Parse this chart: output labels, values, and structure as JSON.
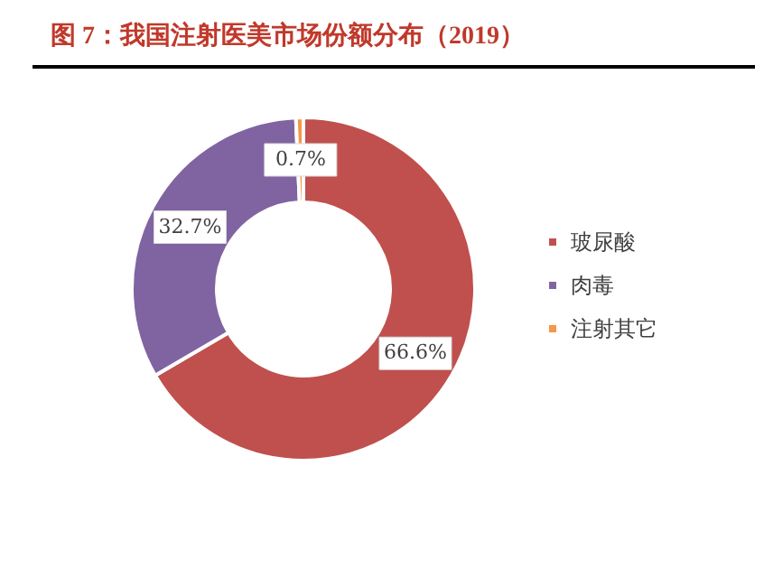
{
  "chart_data": {
    "type": "donut",
    "title": "图 7：我国注射医美市场份额分布（2019）",
    "categories": [
      "玻尿酸",
      "肉毒",
      "注射其它"
    ],
    "values": [
      66.6,
      32.7,
      0.7
    ],
    "colors": [
      "#c0504d",
      "#8064a2",
      "#f79646"
    ],
    "value_labels": [
      "66.6%",
      "32.7%",
      "0.7%"
    ],
    "legend": "right"
  }
}
